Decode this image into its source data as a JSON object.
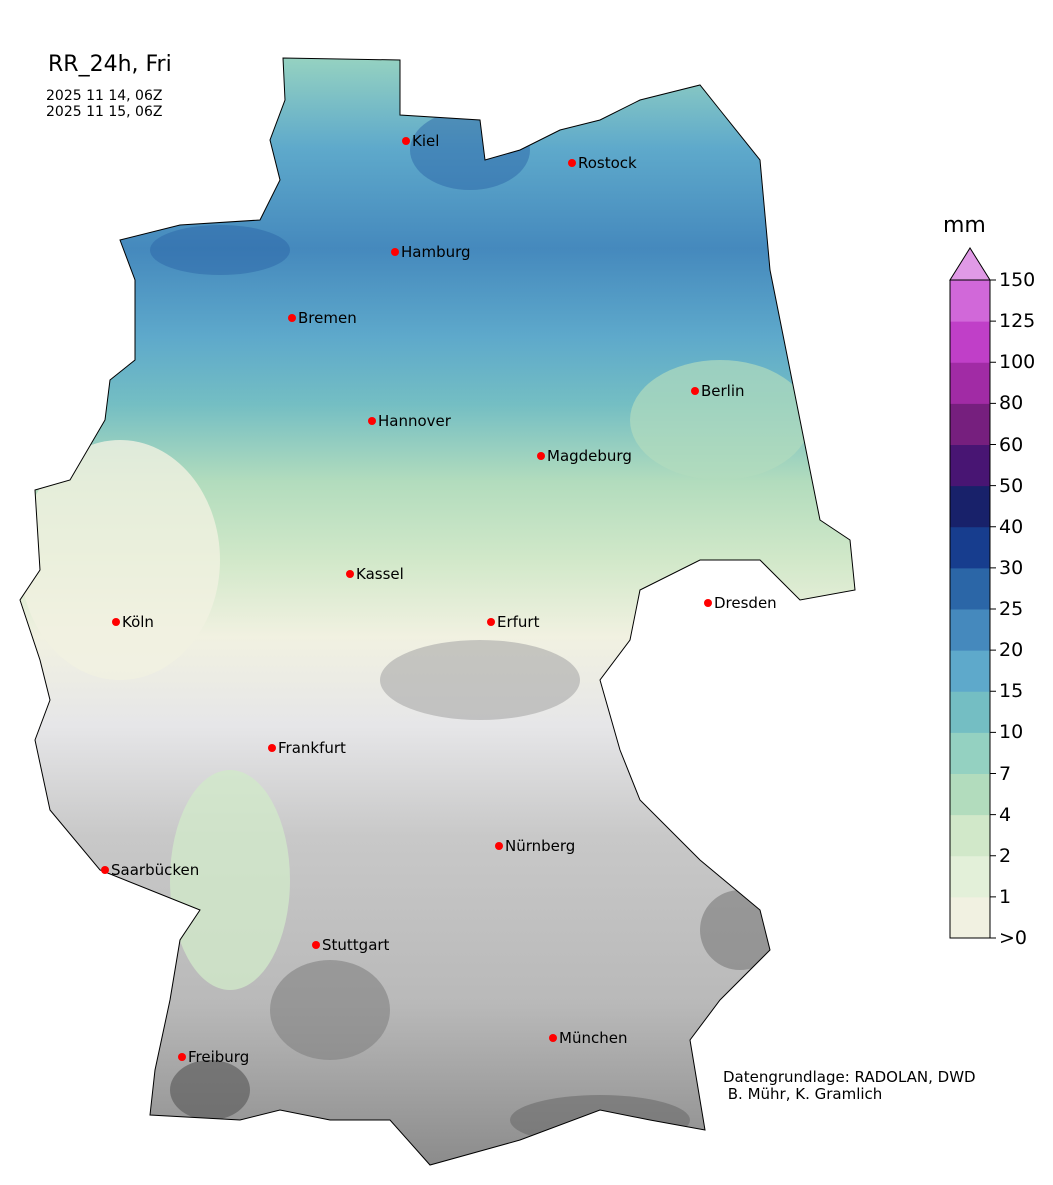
{
  "title": "RR_24h, Fri",
  "period": {
    "start": "2025 11 14, 06Z",
    "end": "2025 11 15, 06Z"
  },
  "colorbar": {
    "unit": "mm",
    "ticks": [
      ">0",
      "1",
      "2",
      "4",
      "7",
      "10",
      "15",
      "20",
      "25",
      "30",
      "40",
      "50",
      "60",
      "80",
      "100",
      "125",
      "150"
    ],
    "colors": [
      "#f1f1e1",
      "#e3f0d9",
      "#d1e8c9",
      "#b2dcbd",
      "#94d1c1",
      "#74bec3",
      "#5ea9cb",
      "#4589bd",
      "#2b66a7",
      "#173d8e",
      "#18216a",
      "#481573",
      "#761f7e",
      "#a12ba5",
      "#c03fc8",
      "#d168d9"
    ],
    "extend_color": "#e09ae6"
  },
  "cities": [
    {
      "name": "Kiel"
    },
    {
      "name": "Rostock"
    },
    {
      "name": "Hamburg"
    },
    {
      "name": "Bremen"
    },
    {
      "name": "Berlin"
    },
    {
      "name": "Hannover"
    },
    {
      "name": "Magdeburg"
    },
    {
      "name": "Kassel"
    },
    {
      "name": "Dresden"
    },
    {
      "name": "Köln"
    },
    {
      "name": "Erfurt"
    },
    {
      "name": "Frankfurt"
    },
    {
      "name": "Nürnberg"
    },
    {
      "name": "Saarbücken"
    },
    {
      "name": "Stuttgart"
    },
    {
      "name": "Freiburg"
    },
    {
      "name": "München"
    }
  ],
  "city_marker_color": "#ff0000",
  "credit": "Datengrundlage: RADOLAN, DWD\n B. Mühr, K. Gramlich"
}
